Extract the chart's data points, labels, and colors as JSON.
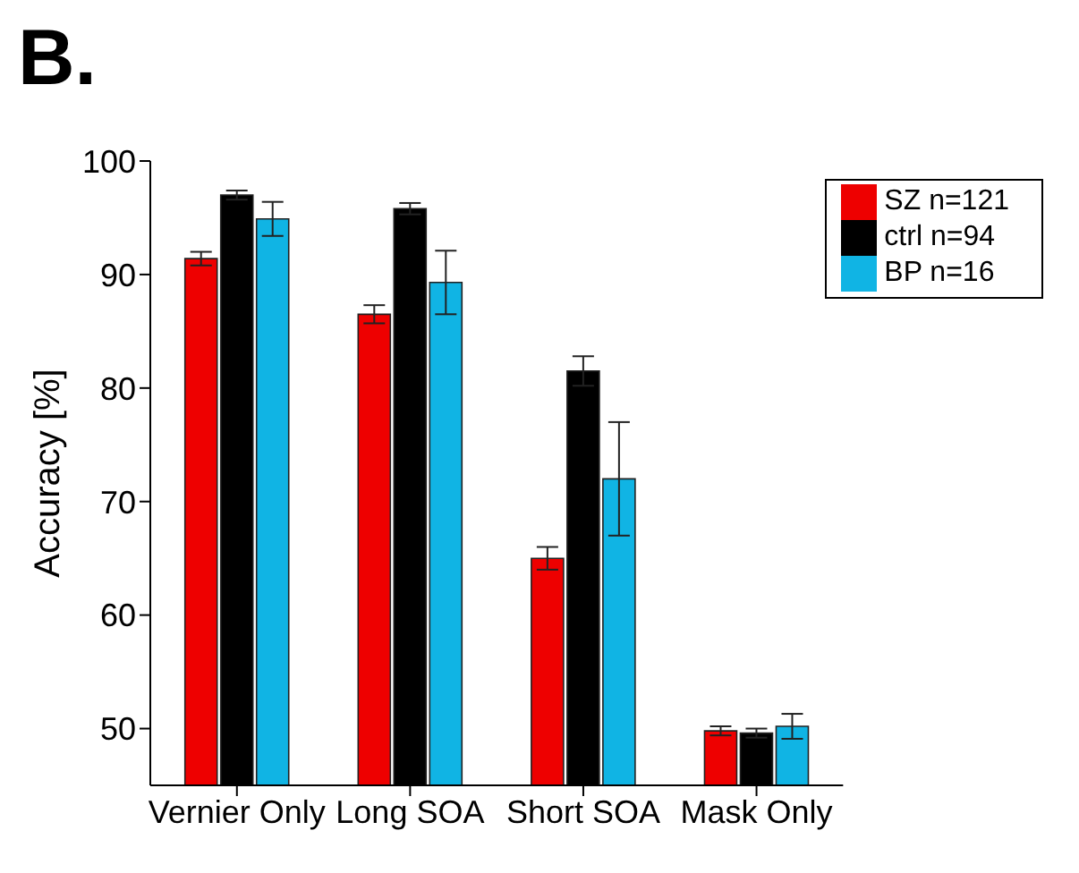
{
  "chart_data": {
    "type": "bar",
    "title": "B.",
    "ylabel": "Accuracy [%]",
    "categories": [
      "Vernier Only",
      "Long SOA",
      "Short SOA",
      "Mask Only"
    ],
    "series": [
      {
        "name": "SZ n=121",
        "color": "#ee0000",
        "values": [
          91.4,
          86.5,
          65.0,
          49.8
        ],
        "errors": [
          0.6,
          0.8,
          1.0,
          0.4
        ]
      },
      {
        "name": "ctrl n=94",
        "color": "#000000",
        "values": [
          97.0,
          95.8,
          81.5,
          49.6
        ],
        "errors": [
          0.4,
          0.5,
          1.3,
          0.4
        ]
      },
      {
        "name": "BP n=16",
        "color": "#10b4e4",
        "values": [
          94.9,
          89.3,
          72.0,
          50.2
        ],
        "errors": [
          1.5,
          2.8,
          5.0,
          1.1
        ]
      }
    ],
    "ylim": [
      45,
      100
    ],
    "yticks": [
      50,
      60,
      70,
      80,
      90,
      100
    ],
    "grid": false,
    "legend": "top right"
  }
}
